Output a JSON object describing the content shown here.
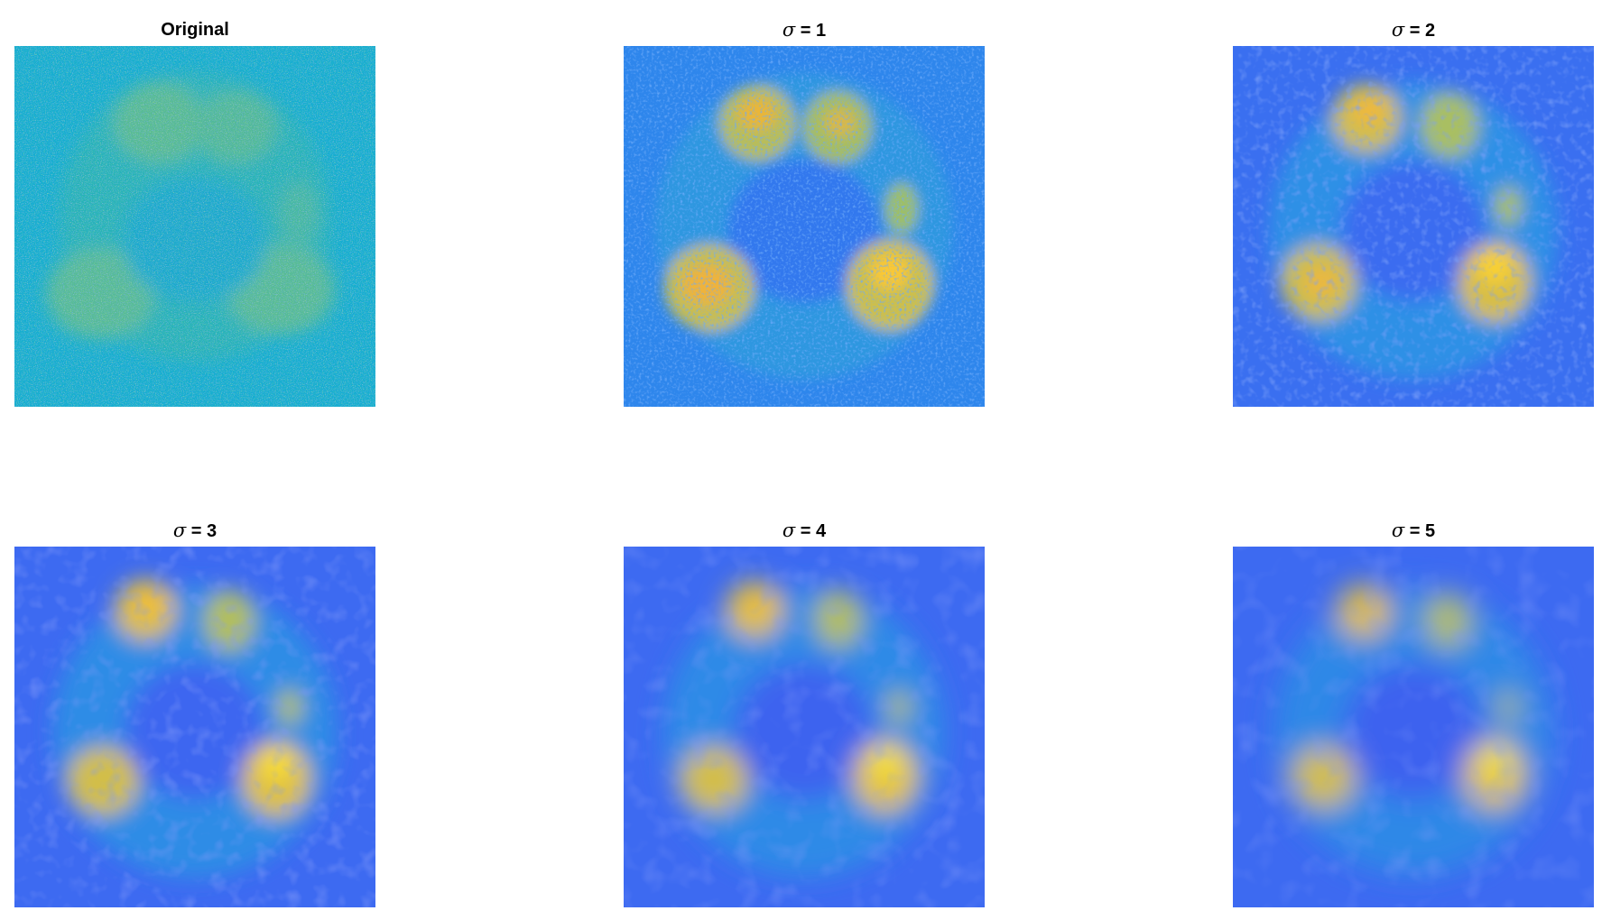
{
  "figure": {
    "colormap": "parula",
    "panels": [
      {
        "title": "Original",
        "sigma": null
      },
      {
        "title": "σ = 1",
        "sigma": 1
      },
      {
        "title": "σ = 2",
        "sigma": 2
      },
      {
        "title": "σ = 3",
        "sigma": 3
      },
      {
        "title": "σ = 4",
        "sigma": 4
      },
      {
        "title": "σ = 5",
        "sigma": 5
      }
    ]
  }
}
